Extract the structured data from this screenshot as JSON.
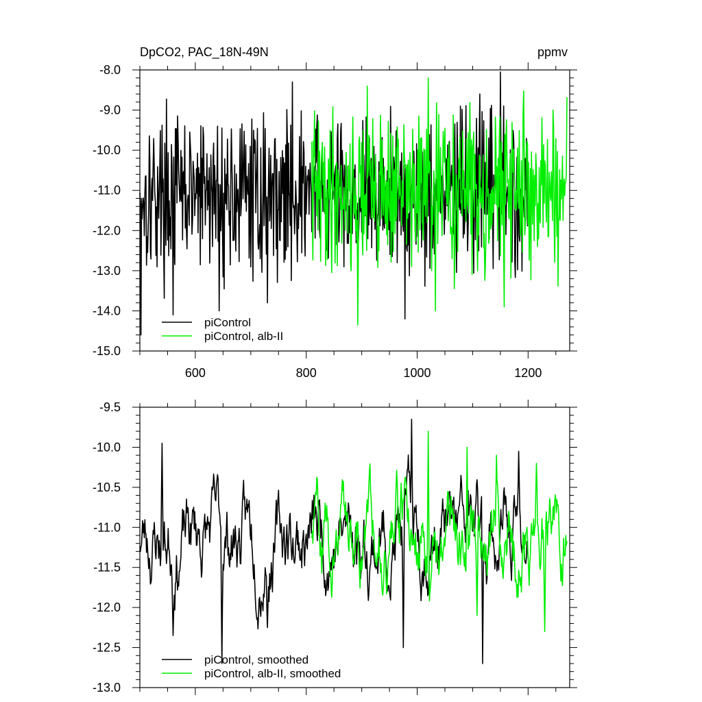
{
  "figure": {
    "title_left": "DpCO2, PAC_18N-49N",
    "title_right": "ppmv"
  },
  "chart_data": [
    {
      "type": "line",
      "title": "DpCO2, PAC_18N-49N",
      "units": "ppmv",
      "xlim": [
        500,
        1275
      ],
      "ylim": [
        -15.0,
        -8.0
      ],
      "xticks": [
        600,
        800,
        1000,
        1200
      ],
      "xtick_labels": [
        "600",
        "800",
        "1000",
        "1200"
      ],
      "yticks": [
        -15.0,
        -14.0,
        -13.0,
        -12.0,
        -11.0,
        -10.0,
        -9.0,
        -8.0
      ],
      "ytick_labels": [
        "-15.0",
        "-14.0",
        "-13.0",
        "-12.0",
        "-11.0",
        "-10.0",
        "-9.0",
        "-8.0"
      ],
      "legend_position": "bottom-left",
      "series": [
        {
          "name": "piControl",
          "color": "#000000",
          "x_start": 500,
          "x_end": 1200,
          "mean": -11.1,
          "amplitude": 1.35,
          "seed": 17,
          "spikes": [
            [
              502,
              -14.6
            ],
            [
              560,
              -14.1
            ],
            [
              643,
              -14.0
            ],
            [
              730,
              -13.8
            ],
            [
              775,
              -8.3
            ],
            [
              978,
              -14.2
            ],
            [
              1150,
              -8.05
            ],
            [
              1078,
              -8.9
            ]
          ]
        },
        {
          "name": "piControl, alb-II",
          "color": "#00ee00",
          "x_start": 810,
          "x_end": 1270,
          "mean": -11.0,
          "amplitude": 1.35,
          "seed": 41,
          "spikes": [
            [
              893,
              -14.35
            ],
            [
              1020,
              -8.2
            ],
            [
              910,
              -8.4
            ],
            [
              1157,
              -13.9
            ],
            [
              1033,
              -14.0
            ],
            [
              1245,
              -9.0
            ]
          ]
        }
      ]
    },
    {
      "type": "line",
      "xlim": [
        500,
        1275
      ],
      "ylim": [
        -13.0,
        -9.5
      ],
      "xticks": [
        600,
        800,
        1000,
        1200
      ],
      "yticks": [
        -13.0,
        -12.5,
        -12.0,
        -11.5,
        -11.0,
        -10.5,
        -10.0,
        -9.5
      ],
      "ytick_labels": [
        "-13.0",
        "-12.5",
        "-12.0",
        "-11.5",
        "-11.0",
        "-10.5",
        "-10.0",
        "-9.5"
      ],
      "legend_position": "bottom-left",
      "series": [
        {
          "name": "piControl, smoothed",
          "color": "#000000",
          "x_start": 500,
          "x_end": 1200,
          "mean": -11.1,
          "amplitude": 0.55,
          "seed": 23,
          "spikes": [
            [
              540,
              -9.95
            ],
            [
              560,
              -12.35
            ],
            [
              648,
              -12.7
            ],
            [
              730,
              -12.25
            ],
            [
              990,
              -9.65
            ],
            [
              1118,
              -12.7
            ],
            [
              1183,
              -10.05
            ],
            [
              975,
              -12.5
            ]
          ]
        },
        {
          "name": "piControl, alb-II, smoothed",
          "color": "#00ee00",
          "x_start": 810,
          "x_end": 1270,
          "mean": -11.0,
          "amplitude": 0.55,
          "seed": 59,
          "spikes": [
            [
              1020,
              -9.8
            ],
            [
              1090,
              -10.0
            ],
            [
              1143,
              -10.1
            ],
            [
              1215,
              -10.2
            ],
            [
              1230,
              -12.3
            ],
            [
              1108,
              -12.1
            ]
          ]
        }
      ]
    }
  ]
}
